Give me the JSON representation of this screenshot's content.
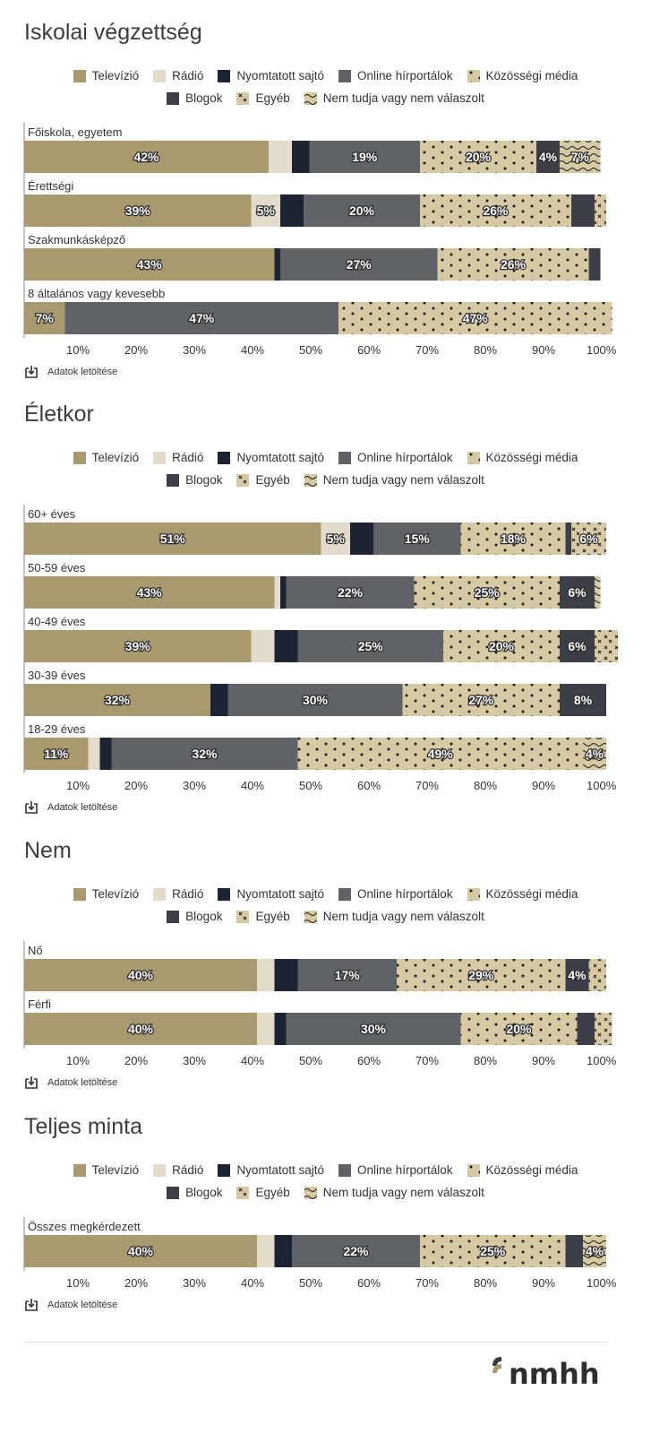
{
  "legend": {
    "items": [
      {
        "name": "Televízió",
        "color": "#a8996f",
        "pattern": "solid"
      },
      {
        "name": "Rádió",
        "color": "#e4dccb",
        "pattern": "solid"
      },
      {
        "name": "Nyomtatott sajtó",
        "color": "#1c2333",
        "pattern": "solid"
      },
      {
        "name": "Online hírportálok",
        "color": "#5f6367",
        "pattern": "solid"
      },
      {
        "name": "Közösségi média",
        "color": "#d6c9a4",
        "pattern": "dots"
      },
      {
        "name": "Blogok",
        "color": "#3d3f48",
        "pattern": "solid"
      },
      {
        "name": "Egyéb",
        "color": "#d6c9a4",
        "pattern": "cross"
      },
      {
        "name": "Nem tudja vagy nem válaszolt",
        "color": "#d6c9a4",
        "pattern": "wave"
      }
    ]
  },
  "download_label": "Adatok letöltése",
  "x_ticks": [
    "10%",
    "20%",
    "30%",
    "40%",
    "50%",
    "60%",
    "70%",
    "80%",
    "90%",
    "100%"
  ],
  "chart_data": [
    {
      "type": "bar",
      "stacked": true,
      "orientation": "horizontal",
      "title": "Iskolai végzettség",
      "xlim": [
        0,
        100
      ],
      "categories": [
        "Főiskola, egyetem",
        "Érettségi",
        "Szakmunkásképző",
        "8 általános vagy kevesebb"
      ],
      "series": [
        {
          "name": "Televízió",
          "values": [
            42,
            39,
            43,
            7
          ],
          "labels": [
            "42%",
            "39%",
            "43%",
            "7%"
          ]
        },
        {
          "name": "Rádió",
          "values": [
            4,
            5,
            0,
            0
          ],
          "labels": [
            "",
            "5%",
            "",
            ""
          ]
        },
        {
          "name": "Nyomtatott sajtó",
          "values": [
            3,
            4,
            1,
            0
          ],
          "labels": [
            "",
            "",
            "",
            ""
          ]
        },
        {
          "name": "Online hírportálok",
          "values": [
            19,
            20,
            27,
            47
          ],
          "labels": [
            "19%",
            "20%",
            "27%",
            "47%"
          ]
        },
        {
          "name": "Közösségi média",
          "values": [
            20,
            26,
            26,
            47
          ],
          "labels": [
            "20%",
            "26%",
            "26%",
            "47%"
          ]
        },
        {
          "name": "Blogok",
          "values": [
            4,
            4,
            2,
            0
          ],
          "labels": [
            "4%",
            "",
            "",
            ""
          ]
        },
        {
          "name": "Egyéb",
          "values": [
            0,
            2,
            0,
            0
          ],
          "labels": [
            "",
            "",
            "",
            ""
          ]
        },
        {
          "name": "Nem tudja vagy nem válaszolt",
          "values": [
            7,
            0,
            0,
            0
          ],
          "labels": [
            "7%",
            "",
            "",
            ""
          ]
        }
      ]
    },
    {
      "type": "bar",
      "stacked": true,
      "orientation": "horizontal",
      "title": "Életkor",
      "xlim": [
        0,
        100
      ],
      "categories": [
        "60+ éves",
        "50-59 éves",
        "40-49 éves",
        "30-39 éves",
        "18-29 éves"
      ],
      "series": [
        {
          "name": "Televízió",
          "values": [
            51,
            43,
            39,
            32,
            11
          ],
          "labels": [
            "51%",
            "43%",
            "39%",
            "32%",
            "11%"
          ]
        },
        {
          "name": "Rádió",
          "values": [
            5,
            1,
            4,
            0,
            2
          ],
          "labels": [
            "5%",
            "",
            "",
            "",
            ""
          ]
        },
        {
          "name": "Nyomtatott sajtó",
          "values": [
            4,
            1,
            4,
            3,
            2
          ],
          "labels": [
            "",
            "",
            "",
            "",
            ""
          ]
        },
        {
          "name": "Online hírportálok",
          "values": [
            15,
            22,
            25,
            30,
            32
          ],
          "labels": [
            "15%",
            "22%",
            "25%",
            "30%",
            "32%"
          ]
        },
        {
          "name": "Közösségi média",
          "values": [
            18,
            25,
            20,
            27,
            49
          ],
          "labels": [
            "18%",
            "25%",
            "20%",
            "27%",
            "49%"
          ]
        },
        {
          "name": "Blogok",
          "values": [
            1,
            6,
            6,
            8,
            0
          ],
          "labels": [
            "",
            "6%",
            "6%",
            "8%",
            ""
          ]
        },
        {
          "name": "Egyéb",
          "values": [
            6,
            0,
            4,
            0,
            0
          ],
          "labels": [
            "6%",
            "",
            "",
            "",
            ""
          ]
        },
        {
          "name": "Nem tudja vagy nem válaszolt",
          "values": [
            0,
            1,
            0,
            0,
            4
          ],
          "labels": [
            "",
            "",
            "",
            "",
            "4%"
          ]
        }
      ]
    },
    {
      "type": "bar",
      "stacked": true,
      "orientation": "horizontal",
      "title": "Nem",
      "xlim": [
        0,
        100
      ],
      "categories": [
        "Nő",
        "Férfi"
      ],
      "series": [
        {
          "name": "Televízió",
          "values": [
            40,
            40
          ],
          "labels": [
            "40%",
            "40%"
          ]
        },
        {
          "name": "Rádió",
          "values": [
            3,
            3
          ],
          "labels": [
            "",
            ""
          ]
        },
        {
          "name": "Nyomtatott sajtó",
          "values": [
            4,
            2
          ],
          "labels": [
            "",
            ""
          ]
        },
        {
          "name": "Online hírportálok",
          "values": [
            17,
            30
          ],
          "labels": [
            "17%",
            "30%"
          ]
        },
        {
          "name": "Közösségi média",
          "values": [
            29,
            20
          ],
          "labels": [
            "29%",
            "20%"
          ]
        },
        {
          "name": "Blogok",
          "values": [
            4,
            3
          ],
          "labels": [
            "4%",
            ""
          ]
        },
        {
          "name": "Egyéb",
          "values": [
            3,
            3
          ],
          "labels": [
            "",
            ""
          ]
        },
        {
          "name": "Nem tudja vagy nem válaszolt",
          "values": [
            0,
            0
          ],
          "labels": [
            "",
            ""
          ]
        }
      ]
    },
    {
      "type": "bar",
      "stacked": true,
      "orientation": "horizontal",
      "title": "Teljes minta",
      "xlim": [
        0,
        100
      ],
      "categories": [
        "Összes megkérdezett"
      ],
      "series": [
        {
          "name": "Televízió",
          "values": [
            40
          ],
          "labels": [
            "40%"
          ]
        },
        {
          "name": "Rádió",
          "values": [
            3
          ],
          "labels": [
            ""
          ]
        },
        {
          "name": "Nyomtatott sajtó",
          "values": [
            3
          ],
          "labels": [
            ""
          ]
        },
        {
          "name": "Online hírportálok",
          "values": [
            22
          ],
          "labels": [
            "22%"
          ]
        },
        {
          "name": "Közösségi média",
          "values": [
            25
          ],
          "labels": [
            "25%"
          ]
        },
        {
          "name": "Blogok",
          "values": [
            3
          ],
          "labels": [
            ""
          ]
        },
        {
          "name": "Egyéb",
          "values": [
            0
          ],
          "labels": [
            ""
          ]
        },
        {
          "name": "Nem tudja vagy nem válaszolt",
          "values": [
            4
          ],
          "labels": [
            "4%"
          ]
        }
      ]
    }
  ]
}
